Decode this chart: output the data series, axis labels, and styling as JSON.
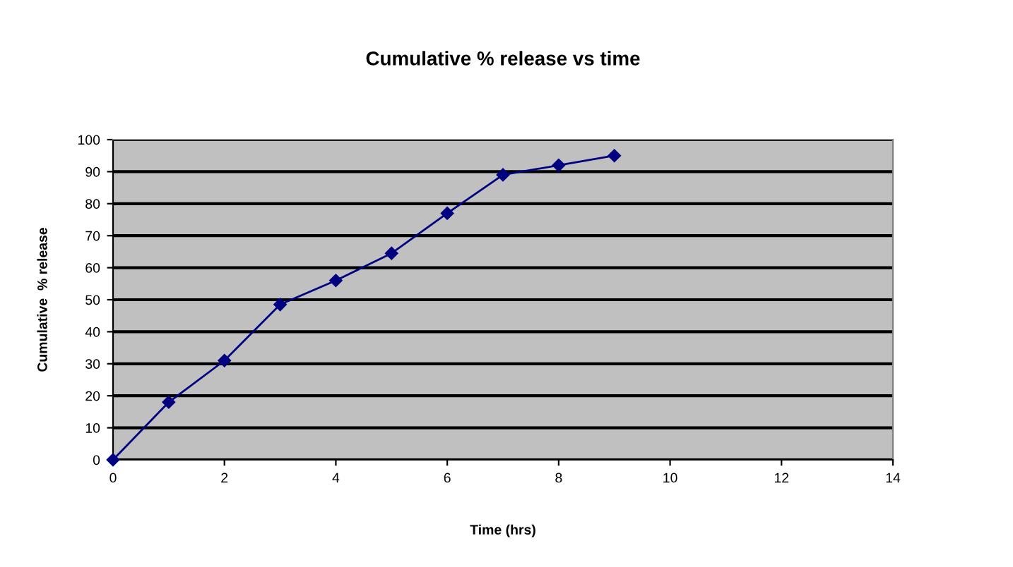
{
  "chart_data": {
    "type": "line",
    "title": "Cumulative % release vs time",
    "xlabel": "Time (hrs)",
    "ylabel": "Cumulative  % release",
    "x": [
      0,
      1,
      2,
      3,
      4,
      5,
      6,
      7,
      8,
      9
    ],
    "series": [
      {
        "color": "#000080",
        "values": [
          0,
          18,
          31,
          48.5,
          56,
          64.5,
          77,
          89,
          92,
          95
        ]
      }
    ],
    "xlim": [
      0,
      14
    ],
    "xticks": [
      0,
      2,
      4,
      6,
      8,
      10,
      12,
      14
    ],
    "ylim": [
      0,
      100
    ],
    "yticks": [
      0,
      10,
      20,
      30,
      40,
      50,
      60,
      70,
      80,
      90,
      100
    ],
    "grid": "y",
    "marker": "diamond",
    "line_style": "solid"
  }
}
